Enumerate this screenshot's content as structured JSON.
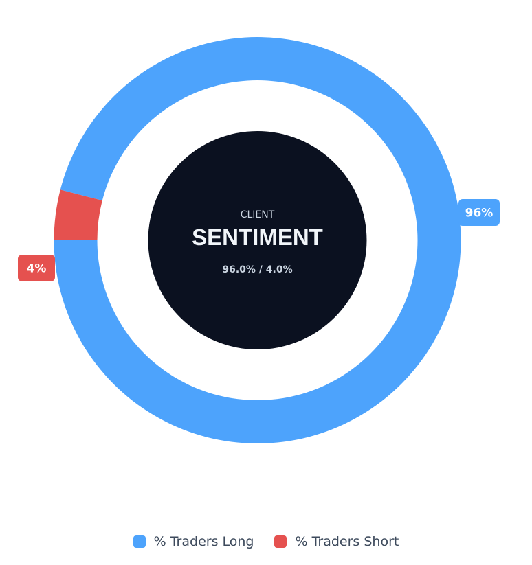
{
  "chart_data": {
    "type": "pie",
    "variant": "donut",
    "title": "",
    "center": {
      "eyebrow": "CLIENT",
      "headline": "SENTIMENT",
      "summary": "96.0% / 4.0%"
    },
    "series": [
      {
        "name": "% Traders Long",
        "value": 96.0,
        "label": "96%",
        "color": "#4da3fc"
      },
      {
        "name": "% Traders Short",
        "value": 4.0,
        "label": "4%",
        "color": "#e5514f"
      }
    ],
    "legend_position": "bottom",
    "colors": {
      "center_fill": "#0b1120",
      "center_text": "#f1f5f9",
      "center_muted": "#cbd5e1"
    }
  }
}
